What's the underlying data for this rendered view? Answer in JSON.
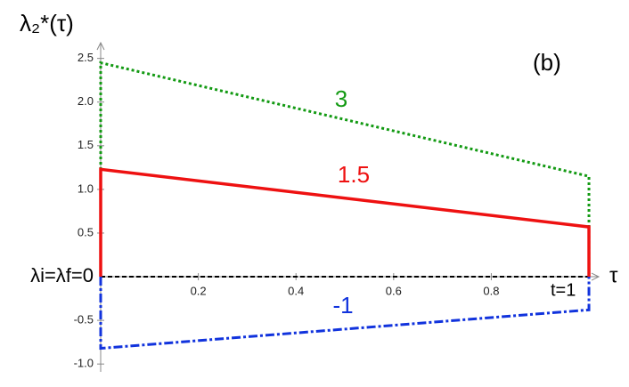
{
  "chart_data": {
    "type": "line",
    "y_label": "λ₂*(τ)",
    "x_label": "τ",
    "annotations": [
      "(b)",
      "λi=λf=0",
      "t=1"
    ],
    "x": [
      0,
      0,
      1,
      1
    ],
    "series": [
      {
        "name": "3",
        "color": "#139a13",
        "style": "dotted",
        "values": [
          0,
          2.45,
          1.15,
          0
        ]
      },
      {
        "name": "1.5",
        "color": "#ee1111",
        "style": "solid",
        "values": [
          0,
          1.23,
          0.57,
          0
        ]
      },
      {
        "name": "-1",
        "color": "#1133dd",
        "style": "dashdot",
        "values": [
          0,
          -0.82,
          -0.38,
          0
        ]
      }
    ],
    "xlim": [
      0,
      1.02
    ],
    "ylim": [
      -1.09,
      2.68
    ],
    "xticks": [
      0.2,
      0.4,
      0.6,
      0.8
    ],
    "yticks": [
      {
        "value": -1.0,
        "label": "-1.0"
      },
      -0.5,
      0.5,
      {
        "value": 1.0,
        "label": "1.0"
      },
      1.5,
      {
        "value": 2.0,
        "label": "2.0"
      },
      2.5
    ],
    "zero_line": true
  }
}
